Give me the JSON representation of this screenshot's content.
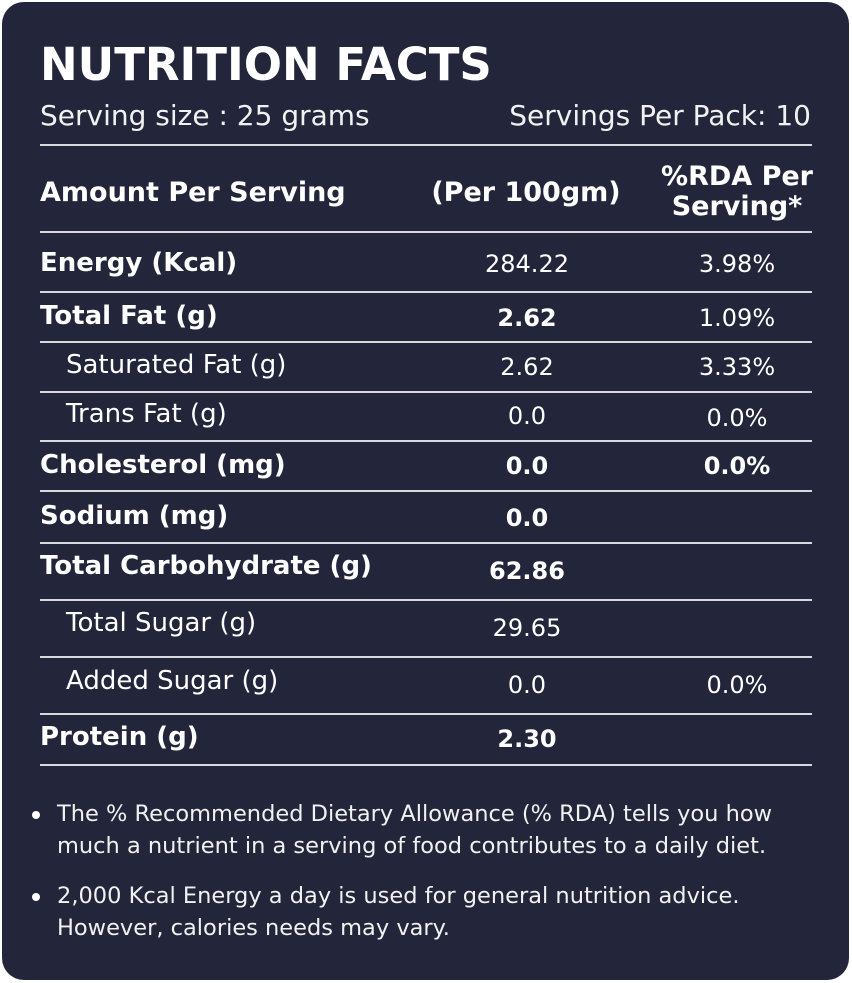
{
  "title": "NUTRITION FACTS",
  "serving_size": "Serving size : 25 grams",
  "servings_per_pack": "Servings Per Pack: 10",
  "headers": {
    "col1": "Amount Per Serving",
    "col2": "(Per 100gm)",
    "col3_line1": "%RDA Per",
    "col3_line2": "Serving*"
  },
  "rows": [
    {
      "label": "Energy (Kcal)",
      "per100": "284.22",
      "rda": "3.98%"
    },
    {
      "label": "Total Fat (g)",
      "per100": "2.62",
      "rda": "1.09%"
    },
    {
      "label": "Saturated Fat (g)",
      "per100": "2.62",
      "rda": "3.33%"
    },
    {
      "label": "Trans Fat (g)",
      "per100": "0.0",
      "rda": "0.0%"
    },
    {
      "label": "Cholesterol (mg)",
      "per100": "0.0",
      "rda": "0.0%"
    },
    {
      "label": "Sodium  (mg)",
      "per100": "0.0",
      "rda": ""
    },
    {
      "label": "Total Carbohydrate (g)",
      "per100": "62.86",
      "rda": ""
    },
    {
      "label": "Total Sugar (g)",
      "per100": "29.65",
      "rda": ""
    },
    {
      "label": "Added Sugar (g)",
      "per100": "0.0",
      "rda": "0.0%"
    },
    {
      "label": "Protein (g)",
      "per100": "2.30",
      "rda": ""
    }
  ],
  "notes": [
    {
      "line1": "The % Recommended Dietary Allowance (% RDA) tells you how",
      "line2": "much a nutrient in a serving of food contributes to a daily diet."
    },
    {
      "line1": "2,000 Kcal Energy a day is used for general nutrition advice.",
      "line2": "However, calories needs may vary."
    }
  ],
  "colors": {
    "background": "#23263a",
    "text": "#ffffff",
    "rule": "#d9d9dd"
  }
}
